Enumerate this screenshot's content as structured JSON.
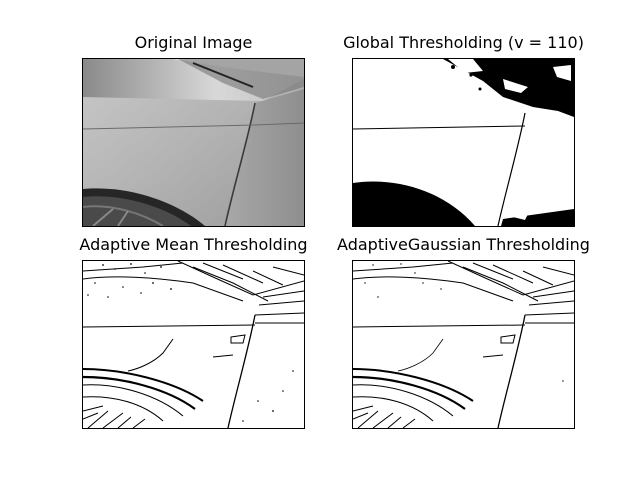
{
  "figure": {
    "panels": [
      {
        "id": "original",
        "title": "Original Image",
        "mode": "grayscale"
      },
      {
        "id": "global",
        "title": "Global Thresholding (v = 110)",
        "mode": "binary"
      },
      {
        "id": "adaptive_mean",
        "title": "Adaptive Mean Thresholding",
        "mode": "edges"
      },
      {
        "id": "adaptive_gaussian",
        "title": "AdaptiveGaussian Thresholding",
        "mode": "edges"
      }
    ]
  }
}
